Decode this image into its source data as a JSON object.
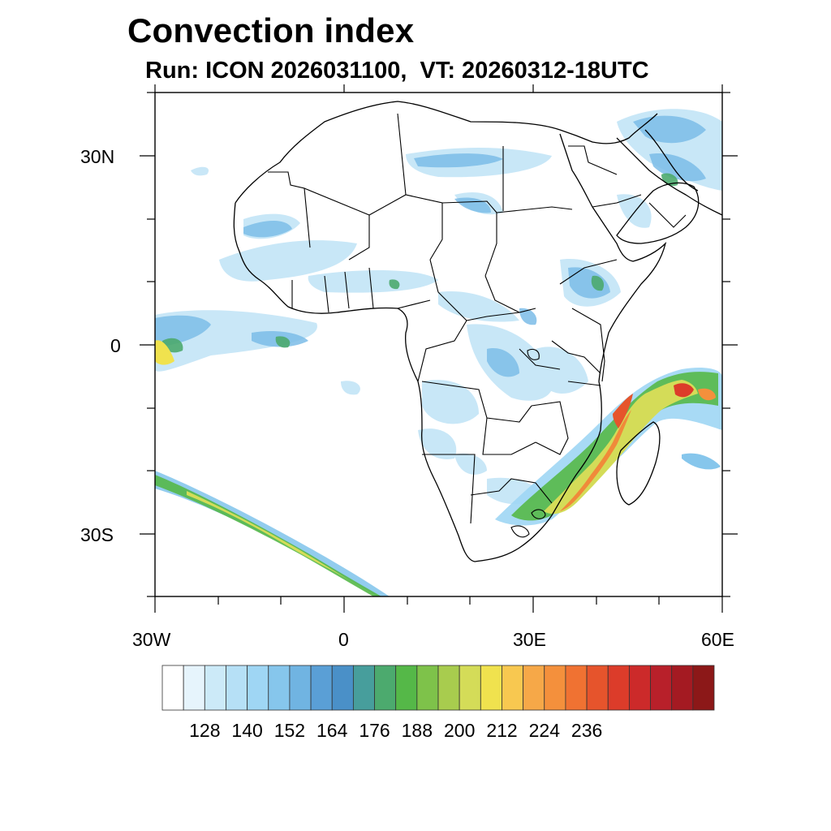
{
  "title": "Convection index",
  "subtitle": "Run: ICON 2026031100,  VT: 20260312-18UTC",
  "map": {
    "lon_range": [
      -30,
      60
    ],
    "lat_range": [
      -40,
      40
    ],
    "lat_ticks": [
      "30N",
      "0",
      "30S"
    ],
    "lon_ticks": [
      "30W",
      "0",
      "30E",
      "60E"
    ]
  },
  "colorbar": {
    "colors": [
      "#ffffff",
      "#e6f4fc",
      "#cceaf8",
      "#b6e0f6",
      "#9fd6f4",
      "#86c6ec",
      "#70b4e2",
      "#5a9fd6",
      "#4a90c8",
      "#479e9c",
      "#4caa6e",
      "#55b848",
      "#7ec24a",
      "#a8cc4e",
      "#d4dc58",
      "#f0e24e",
      "#f8c850",
      "#f6a848",
      "#f4903c",
      "#f07232",
      "#e6542c",
      "#dc3c2a",
      "#cc2a2a",
      "#b8202a",
      "#a41a22",
      "#8c1818"
    ],
    "labels": [
      "128",
      "140",
      "152",
      "164",
      "176",
      "188",
      "200",
      "212",
      "224",
      "236"
    ]
  }
}
